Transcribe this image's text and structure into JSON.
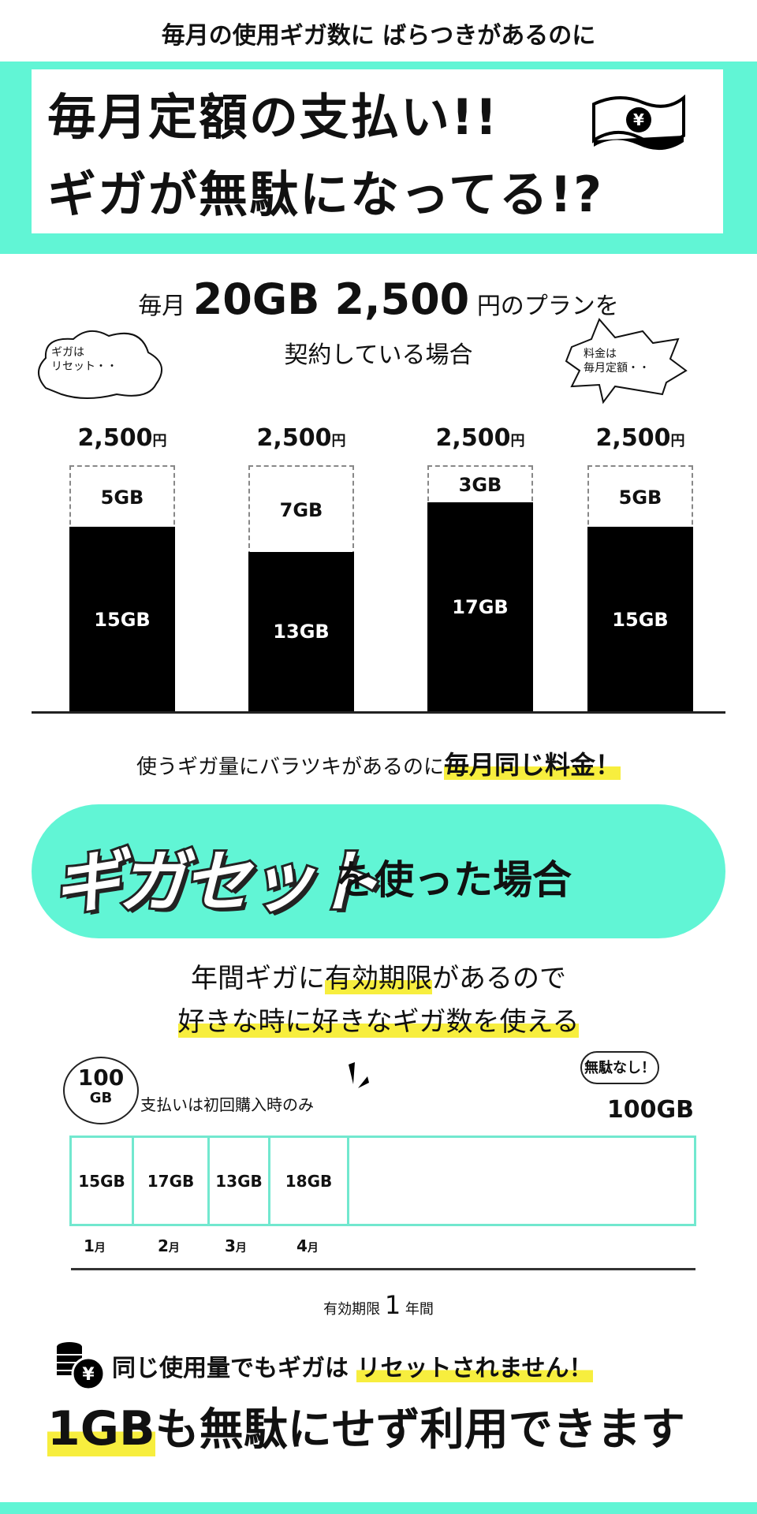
{
  "header": {
    "subtitle": "毎月の使用ギガ数に ばらつきがあるのに",
    "title_line1": "毎月定額の支払い!!",
    "title_line2": "ギガが無駄になってる!?",
    "money_icon": "yen-banknote-icon"
  },
  "plan": {
    "prefix": "毎月",
    "gb": "20GB",
    "price": "2,500",
    "suffix": "円のプランを",
    "line2": "契約している場合"
  },
  "bubbles": {
    "left": "ギガは\nリセット・・",
    "right": "料金は\n毎月定額・・"
  },
  "chart_data": {
    "type": "bar",
    "stacked": true,
    "plan_total_gb": 20,
    "months": [
      {
        "price": "2,500",
        "price_unit": "円",
        "used": 15,
        "used_label": "15GB",
        "unused": 5,
        "unused_label": "5GB"
      },
      {
        "price": "2,500",
        "price_unit": "円",
        "used": 13,
        "used_label": "13GB",
        "unused": 7,
        "unused_label": "7GB"
      },
      {
        "price": "2,500",
        "price_unit": "円",
        "used": 17,
        "used_label": "17GB",
        "unused": 3,
        "unused_label": "3GB"
      },
      {
        "price": "2,500",
        "price_unit": "円",
        "used": 15,
        "used_label": "15GB",
        "unused": 5,
        "unused_label": "5GB"
      }
    ],
    "colors": {
      "used": "#000000",
      "unused": "#ffffff"
    }
  },
  "caption": {
    "plain": "使うギガ量にバラツキがあるのに",
    "highlight": "毎月同じ料金！"
  },
  "gigaset": {
    "logo": "ギガセット",
    "suffix": "を使った場合"
  },
  "desc": {
    "line1a": "年間ギガに",
    "line1b": "有効期限",
    "line1c": "があるので",
    "line2": "好きな時に好きなギガ数を使える"
  },
  "annual": {
    "circle_num": "100",
    "circle_unit": "GB",
    "payment_note": "支払いは初回購入時のみ",
    "badge": "無駄なし！",
    "total": "100GB",
    "cells": [
      "15GB",
      "17GB",
      "13GB",
      "18GB"
    ],
    "months": [
      {
        "n": "1",
        "u": "月"
      },
      {
        "n": "2",
        "u": "月"
      },
      {
        "n": "3",
        "u": "月"
      },
      {
        "n": "4",
        "u": "月"
      }
    ],
    "expiry_a": "有効期限",
    "expiry_num": "1",
    "expiry_b": "年間"
  },
  "footer": {
    "line1a": "同じ使用量でもギガは",
    "line1b": "リセットされません！",
    "line2a": "1GB",
    "line2b": "も無駄にせず利用できます",
    "coin_icon": "yen-coins-icon"
  },
  "colors": {
    "teal": "#61f5d5",
    "yellow": "#f7ee3e",
    "cell_border": "#72e8cf"
  }
}
